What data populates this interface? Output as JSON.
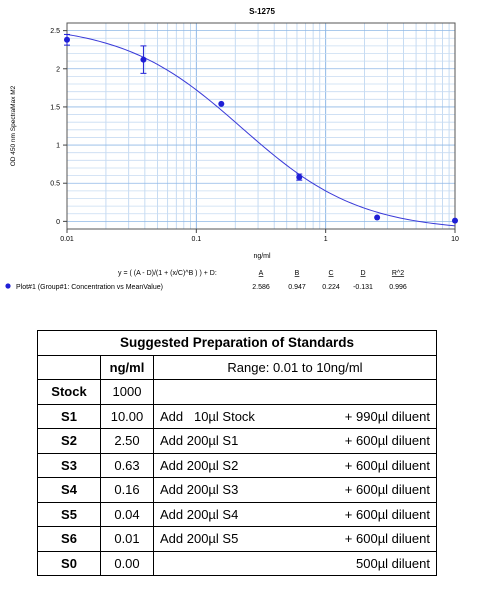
{
  "chart_data": {
    "type": "scatter",
    "title": "S-1275",
    "xlabel": "ng/ml",
    "ylabel": "OD 450 nm SpectraMax M2",
    "xscale": "log",
    "xlim": [
      0.01,
      10
    ],
    "ylim": [
      -0.1,
      2.6
    ],
    "x_ticks": [
      0.01,
      0.1,
      1,
      10
    ],
    "x_tick_labels": [
      "0.01",
      "0.1",
      "1",
      "10"
    ],
    "y_ticks": [
      0,
      0.5,
      1,
      1.5,
      2,
      2.5
    ],
    "y_tick_labels": [
      "0",
      "0.5",
      "1",
      "1.5",
      "2",
      "2.5"
    ],
    "grid": true,
    "series": [
      {
        "name": "Plot#1 (Group#1: Concentration vs MeanValue)",
        "color": "#1f1fd6",
        "x": [
          0.01,
          0.039,
          0.156,
          0.625,
          2.5,
          10
        ],
        "y": [
          2.38,
          2.12,
          1.54,
          0.58,
          0.05,
          0.01
        ],
        "yerr": [
          0.07,
          0.18,
          0.0,
          0.04,
          0.0,
          0.0
        ]
      }
    ],
    "fit": {
      "equation": "y = ( (A - D)/(1 + (x/C)^B ) ) + D:",
      "params": [
        {
          "name": "A",
          "value": "2.586"
        },
        {
          "name": "B",
          "value": "0.947"
        },
        {
          "name": "C",
          "value": "0.224"
        },
        {
          "name": "D",
          "value": "-0.131"
        },
        {
          "name": "R^2",
          "value": "0.996"
        }
      ],
      "A": 2.586,
      "B": 0.947,
      "C": 0.224,
      "D": -0.131
    },
    "legend": "bottom"
  },
  "table": {
    "title": "Suggested Preparation of Standards",
    "col_unit": "ng/ml",
    "range": "Range: 0.01 to 10ng/ml",
    "rows": [
      {
        "label": "Stock",
        "value": "1000",
        "add": "",
        "diluent": ""
      },
      {
        "label": "S1",
        "value": "10.00",
        "add": "Add   10µl Stock",
        "diluent": "+ 990µl diluent"
      },
      {
        "label": "S2",
        "value": "2.50",
        "add": "Add 200µl S1",
        "diluent": "+ 600µl diluent"
      },
      {
        "label": "S3",
        "value": "0.63",
        "add": "Add 200µl S2",
        "diluent": "+ 600µl diluent"
      },
      {
        "label": "S4",
        "value": "0.16",
        "add": "Add 200µl S3",
        "diluent": "+ 600µl diluent"
      },
      {
        "label": "S5",
        "value": "0.04",
        "add": "Add 200µl S4",
        "diluent": "+ 600µl diluent"
      },
      {
        "label": "S6",
        "value": "0.01",
        "add": "Add 200µl S5",
        "diluent": "+ 600µl diluent"
      },
      {
        "label": "S0",
        "value": "0.00",
        "add": "",
        "diluent": "500µl diluent"
      }
    ]
  }
}
